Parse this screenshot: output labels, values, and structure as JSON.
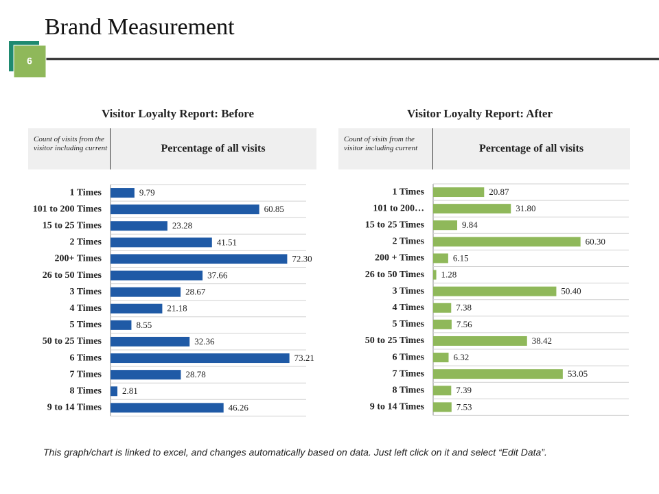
{
  "header": {
    "title": "Brand Measurement",
    "page_number": "6"
  },
  "chart_data": [
    {
      "type": "bar",
      "orientation": "horizontal",
      "title": "Visitor Loyalty Report: Before",
      "column_header": "Count of visits from the visitor including current",
      "value_header": "Percentage of all visits",
      "color": "#1f5aa6",
      "categories": [
        "1 Times",
        "101 to 200 Times",
        "15 to 25 Times",
        "2 Times",
        "200+ Times",
        "26 to 50 Times",
        "3 Times",
        "4 Times",
        "5 Times",
        "50 to 25 Times",
        "6 Times",
        "7 Times",
        "8 Times",
        "9 to 14 Times"
      ],
      "values": [
        9.79,
        60.85,
        23.28,
        41.51,
        72.3,
        37.66,
        28.67,
        21.18,
        8.55,
        32.36,
        73.21,
        28.78,
        2.81,
        46.26
      ],
      "value_labels": [
        "9.79",
        "60.85",
        "23.28",
        "41.51",
        "72.30",
        "37.66",
        "28.67",
        "21.18",
        "8.55",
        "32.36",
        "73.21",
        "28.78",
        "2.81",
        "46.26"
      ]
    },
    {
      "type": "bar",
      "orientation": "horizontal",
      "title": "Visitor Loyalty Report: After",
      "column_header": "Count of visits from the visitor including current",
      "value_header": "Percentage of all visits",
      "color": "#8fb85a",
      "categories": [
        "1 Times",
        "101 to 200…",
        "15 to 25 Times",
        "2 Times",
        "200 + Times",
        "26 to 50 Times",
        "3 Times",
        "4 Times",
        "5 Times",
        "50 to 25 Times",
        "6 Times",
        "7 Times",
        "8 Times",
        "9 to 14 Times"
      ],
      "values": [
        20.87,
        31.8,
        9.84,
        60.3,
        6.15,
        1.28,
        50.4,
        7.38,
        7.56,
        38.42,
        6.32,
        53.05,
        7.39,
        7.53
      ],
      "value_labels": [
        "20.87",
        "31.80",
        "9.84",
        "60.30",
        "6.15",
        "1.28",
        "50.40",
        "7.38",
        "7.56",
        "38.42",
        "6.32",
        "53.05",
        "7.39",
        "7.53"
      ]
    }
  ],
  "footer": "This graph/chart is linked to excel, and changes automatically based on data. Just left click on it and select “Edit Data”."
}
